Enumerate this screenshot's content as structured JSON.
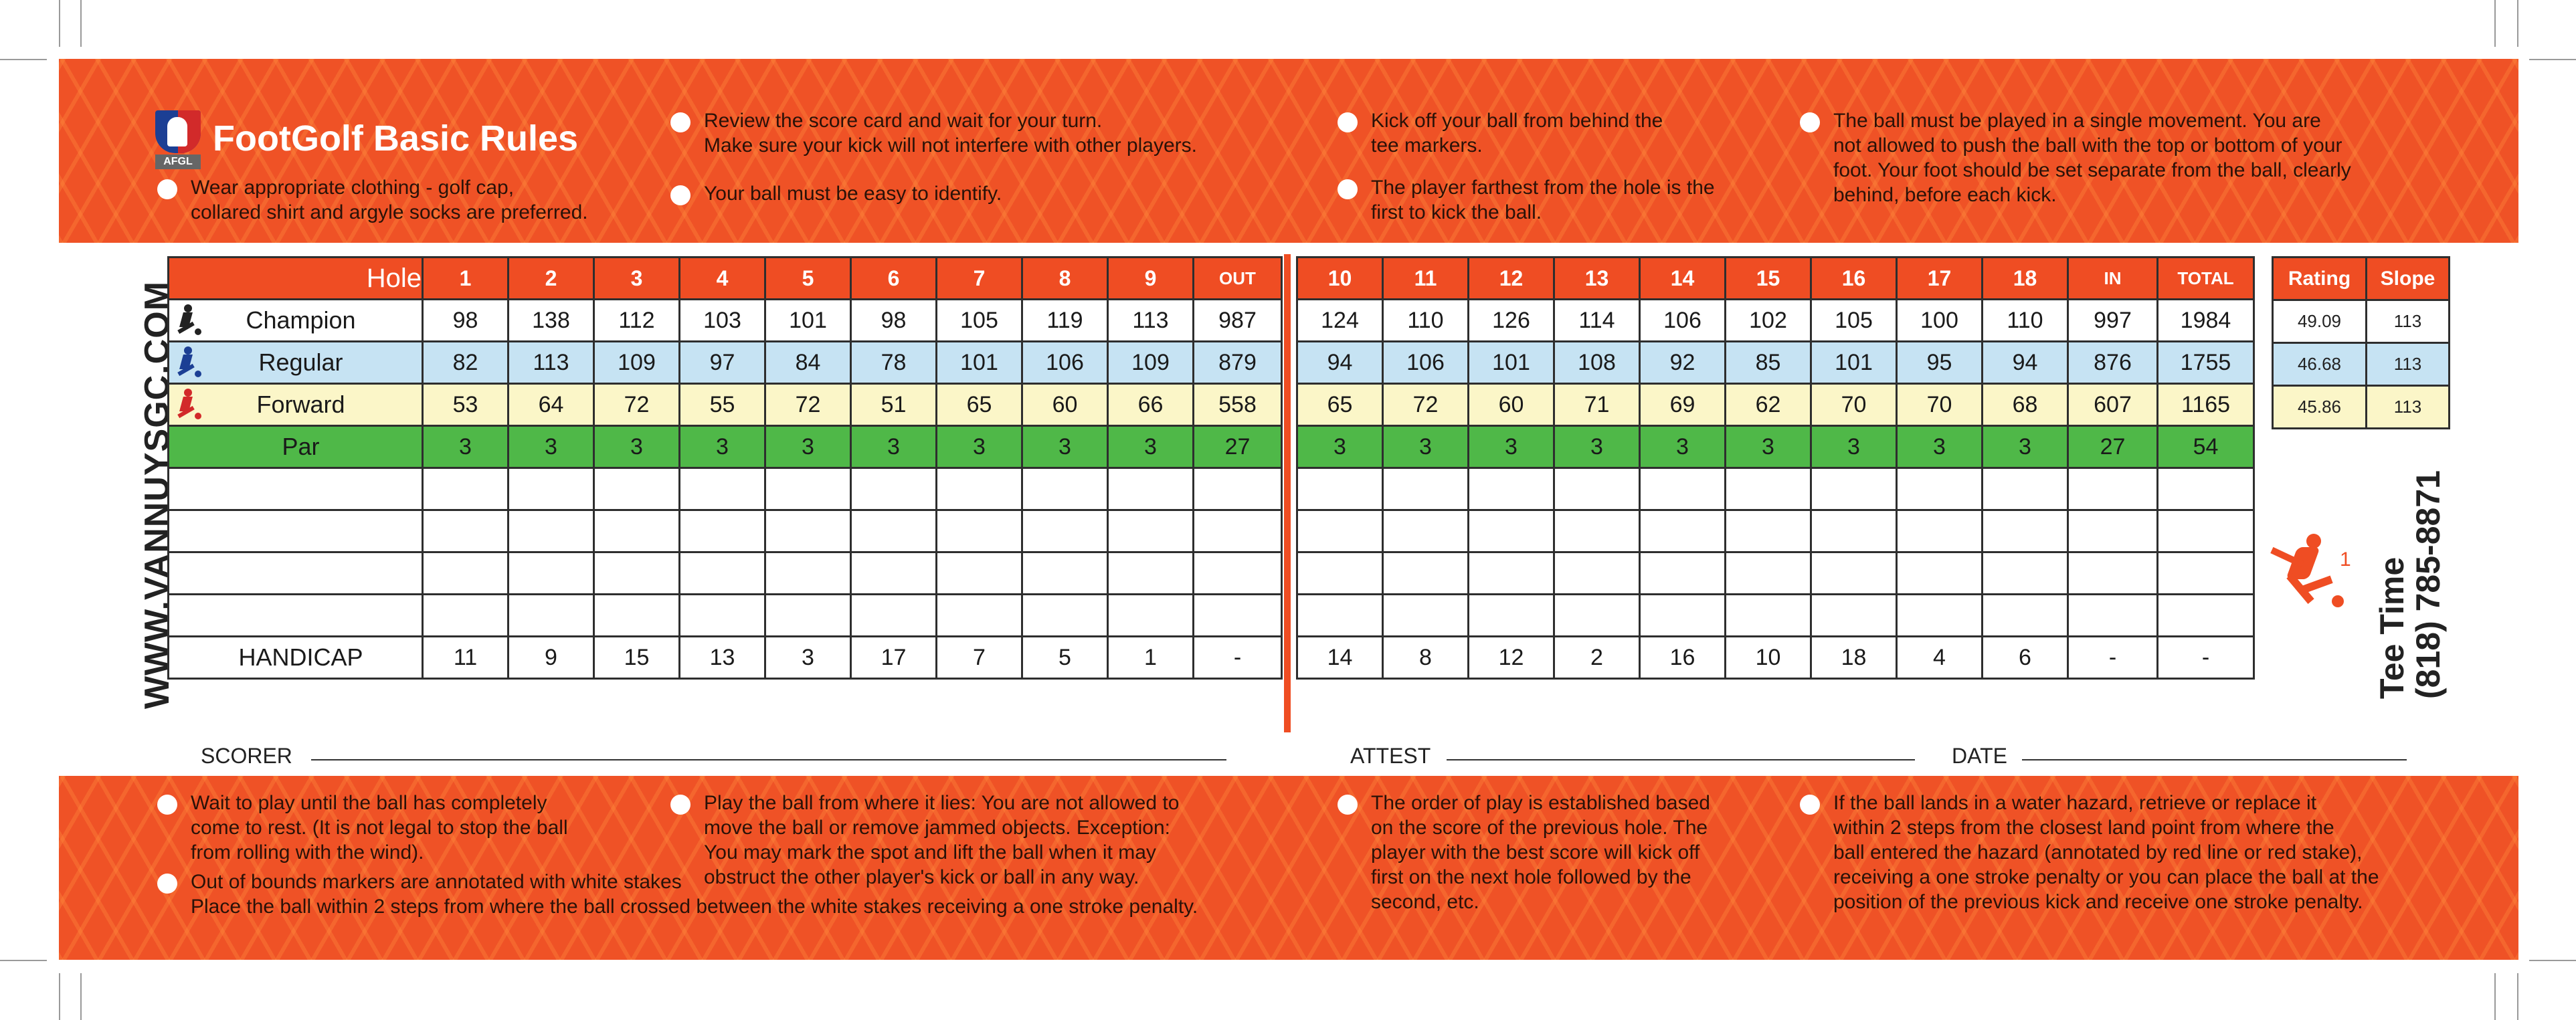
{
  "header": {
    "logo_text": "AFGL",
    "title": "FootGolf Basic Rules"
  },
  "top_rules": [
    "Wear appropriate clothing - golf cap,\ncollared shirt and argyle socks are preferred.",
    "Review the score card and wait for your turn.\nMake sure your kick will not interfere with other players.",
    "Your ball must be easy to identify.",
    "Kick off your ball from behind the\ntee markers.",
    "The player farthest from the hole is the\nfirst to kick the ball.",
    "The ball must be played in a single movement. You are\nnot allowed to push the ball with the top or bottom of your\nfoot. Your foot should be set separate from the ball, clearly\nbehind, before each kick."
  ],
  "side_url": "WWW.VANNUYSGC.COM",
  "front": {
    "header": [
      "Hole",
      "1",
      "2",
      "3",
      "4",
      "5",
      "6",
      "7",
      "8",
      "9",
      "OUT"
    ],
    "rows": [
      {
        "label": "Champion",
        "values": [
          "98",
          "138",
          "112",
          "103",
          "101",
          "98",
          "105",
          "119",
          "113",
          "987"
        ]
      },
      {
        "label": "Regular",
        "values": [
          "82",
          "113",
          "109",
          "97",
          "84",
          "78",
          "101",
          "106",
          "109",
          "879"
        ]
      },
      {
        "label": "Forward",
        "values": [
          "53",
          "64",
          "72",
          "55",
          "72",
          "51",
          "65",
          "60",
          "66",
          "558"
        ]
      },
      {
        "label": "Par",
        "values": [
          "3",
          "3",
          "3",
          "3",
          "3",
          "3",
          "3",
          "3",
          "3",
          "27"
        ]
      }
    ],
    "handicap": {
      "label": "HANDICAP",
      "values": [
        "11",
        "9",
        "15",
        "13",
        "3",
        "17",
        "7",
        "5",
        "1",
        "-"
      ]
    }
  },
  "back": {
    "header": [
      "10",
      "11",
      "12",
      "13",
      "14",
      "15",
      "16",
      "17",
      "18",
      "IN",
      "TOTAL"
    ],
    "rows": [
      {
        "values": [
          "124",
          "110",
          "126",
          "114",
          "106",
          "102",
          "105",
          "100",
          "110",
          "997",
          "1984"
        ]
      },
      {
        "values": [
          "94",
          "106",
          "101",
          "108",
          "92",
          "85",
          "101",
          "95",
          "94",
          "876",
          "1755"
        ]
      },
      {
        "values": [
          "65",
          "72",
          "60",
          "71",
          "69",
          "62",
          "70",
          "70",
          "68",
          "607",
          "1165"
        ]
      },
      {
        "values": [
          "3",
          "3",
          "3",
          "3",
          "3",
          "3",
          "3",
          "3",
          "3",
          "27",
          "54"
        ]
      }
    ],
    "handicap": {
      "values": [
        "14",
        "8",
        "12",
        "2",
        "16",
        "10",
        "18",
        "4",
        "6",
        "-",
        "-"
      ]
    }
  },
  "rating": {
    "header": [
      "Rating",
      "Slope"
    ],
    "rows": [
      [
        "49.09",
        "113"
      ],
      [
        "46.68",
        "113"
      ],
      [
        "45.86",
        "113"
      ]
    ]
  },
  "tee_time": {
    "label": "Tee Time",
    "phone": "(818) 785-8871",
    "flag_number": "1"
  },
  "signatures": [
    "SCORER",
    "ATTEST",
    "DATE"
  ],
  "bottom_rules": [
    "Wait to play until the ball has completely\ncome to rest. (It is not legal to stop the ball\nfrom rolling with the wind).",
    "Play the ball from where it lies: You are not allowed to\nmove the ball or remove jammed objects. Exception:\nYou may mark the spot and lift the ball when it may\nobstruct the other player's kick or ball in any way.",
    "Out of bounds markers are annotated with white stakes\nPlace the ball within 2 steps from where the ball crossed between the white stakes receiving a one stroke penalty.",
    "The order of play is established based\non the score of the previous hole. The\nplayer with the best score will kick off\nfirst on the next hole followed by the\nsecond, etc.",
    "If the ball lands in a water hazard, retrieve or replace it\nwithin 2 steps from the closest land point from where the\nball entered the hazard (annotated by red line or red stake),\nreceiving a one stroke penalty or you can place the ball at the\nposition of the previous kick and receive one stroke penalty."
  ],
  "colors": {
    "band": "#ef5226",
    "header": "#ef4d23",
    "champion": "#ffffff",
    "regular": "#c6e3f3",
    "forward": "#fbf6c8",
    "par": "#4fb848",
    "champion_icon": "#222222",
    "regular_icon": "#1c3f94",
    "forward_icon": "#d22a2a"
  }
}
